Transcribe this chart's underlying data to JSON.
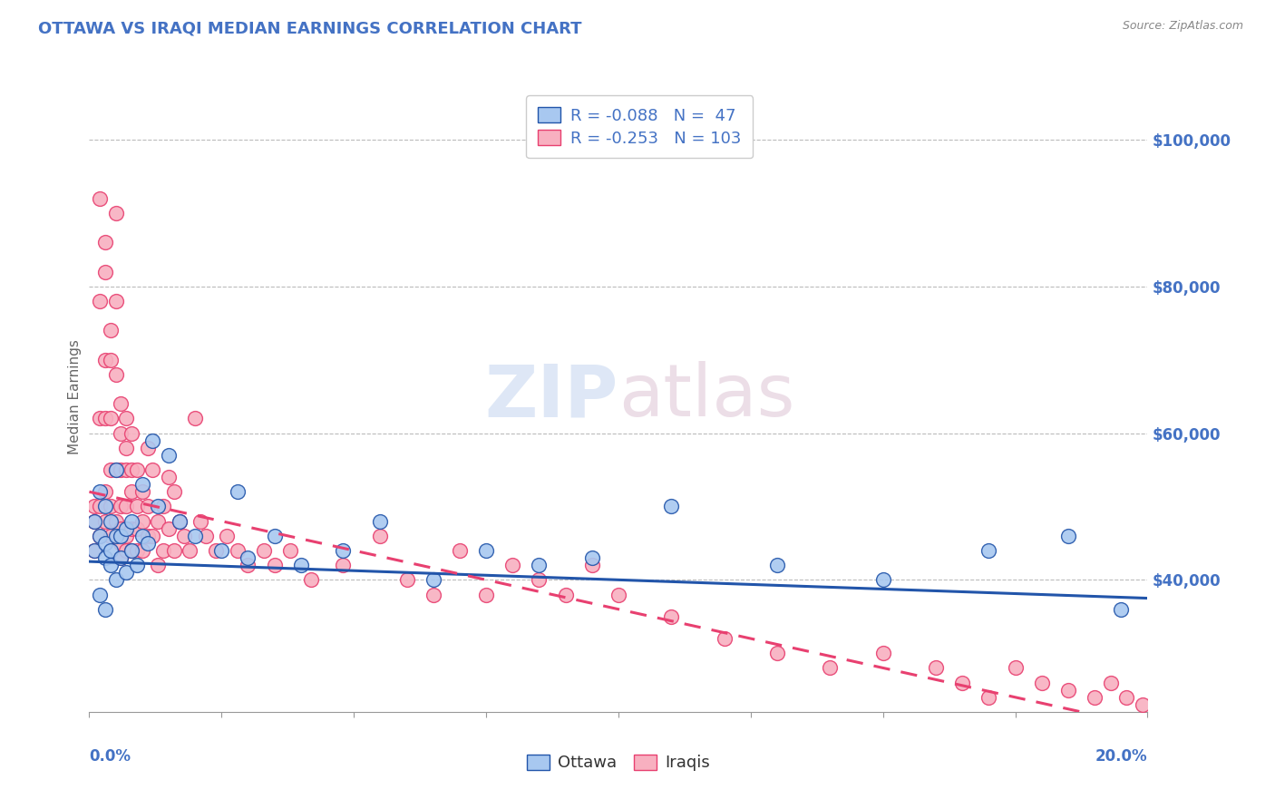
{
  "title": "OTTAWA VS IRAQI MEDIAN EARNINGS CORRELATION CHART",
  "source": "Source: ZipAtlas.com",
  "ylabel": "Median Earnings",
  "ytick_labels": [
    "$40,000",
    "$60,000",
    "$80,000",
    "$100,000"
  ],
  "ytick_values": [
    40000,
    60000,
    80000,
    100000
  ],
  "xmin": 0.0,
  "xmax": 0.2,
  "ymin": 22000,
  "ymax": 108000,
  "ottawa_color": "#a8c8f0",
  "iraqis_color": "#f8b0c0",
  "regression_ottawa_color": "#2255aa",
  "regression_iraqis_color": "#e84070",
  "R_ottawa": -0.088,
  "N_ottawa": 47,
  "R_iraqis": -0.253,
  "N_iraqis": 103,
  "title_color": "#4472c4",
  "axis_label_color": "#4472c4",
  "ytick_color": "#4472c4",
  "legend_R_color": "#4472c4",
  "ottawa_scatter_x": [
    0.001,
    0.001,
    0.002,
    0.002,
    0.002,
    0.003,
    0.003,
    0.003,
    0.003,
    0.004,
    0.004,
    0.004,
    0.005,
    0.005,
    0.005,
    0.006,
    0.006,
    0.007,
    0.007,
    0.008,
    0.008,
    0.009,
    0.01,
    0.01,
    0.011,
    0.012,
    0.013,
    0.015,
    0.017,
    0.02,
    0.025,
    0.028,
    0.03,
    0.035,
    0.04,
    0.048,
    0.055,
    0.065,
    0.075,
    0.085,
    0.095,
    0.11,
    0.13,
    0.15,
    0.17,
    0.185,
    0.195
  ],
  "ottawa_scatter_y": [
    48000,
    44000,
    46000,
    38000,
    52000,
    43000,
    50000,
    45000,
    36000,
    44000,
    42000,
    48000,
    46000,
    40000,
    55000,
    43000,
    46000,
    41000,
    47000,
    44000,
    48000,
    42000,
    46000,
    53000,
    45000,
    59000,
    50000,
    57000,
    48000,
    46000,
    44000,
    52000,
    43000,
    46000,
    42000,
    44000,
    48000,
    40000,
    44000,
    42000,
    43000,
    50000,
    42000,
    40000,
    44000,
    46000,
    36000
  ],
  "iraqis_scatter_x": [
    0.001,
    0.001,
    0.001,
    0.002,
    0.002,
    0.002,
    0.002,
    0.002,
    0.003,
    0.003,
    0.003,
    0.003,
    0.003,
    0.003,
    0.004,
    0.004,
    0.004,
    0.004,
    0.004,
    0.004,
    0.005,
    0.005,
    0.005,
    0.005,
    0.005,
    0.006,
    0.006,
    0.006,
    0.006,
    0.006,
    0.006,
    0.006,
    0.007,
    0.007,
    0.007,
    0.007,
    0.007,
    0.007,
    0.008,
    0.008,
    0.008,
    0.008,
    0.008,
    0.009,
    0.009,
    0.009,
    0.009,
    0.01,
    0.01,
    0.01,
    0.011,
    0.011,
    0.011,
    0.012,
    0.012,
    0.013,
    0.013,
    0.014,
    0.014,
    0.015,
    0.015,
    0.016,
    0.016,
    0.017,
    0.018,
    0.019,
    0.02,
    0.021,
    0.022,
    0.024,
    0.026,
    0.028,
    0.03,
    0.033,
    0.035,
    0.038,
    0.042,
    0.048,
    0.055,
    0.06,
    0.065,
    0.07,
    0.075,
    0.08,
    0.085,
    0.09,
    0.095,
    0.1,
    0.11,
    0.12,
    0.13,
    0.14,
    0.15,
    0.16,
    0.165,
    0.17,
    0.175,
    0.18,
    0.185,
    0.19,
    0.193,
    0.196,
    0.199
  ],
  "iraqis_scatter_y": [
    50000,
    44000,
    48000,
    92000,
    78000,
    62000,
    50000,
    46000,
    86000,
    82000,
    70000,
    62000,
    52000,
    48000,
    74000,
    70000,
    62000,
    55000,
    50000,
    46000,
    90000,
    78000,
    68000,
    55000,
    48000,
    64000,
    60000,
    55000,
    50000,
    47000,
    45000,
    43000,
    62000,
    58000,
    55000,
    50000,
    46000,
    44000,
    60000,
    55000,
    52000,
    47000,
    44000,
    55000,
    50000,
    47000,
    44000,
    52000,
    48000,
    44000,
    58000,
    50000,
    46000,
    55000,
    46000,
    48000,
    42000,
    50000,
    44000,
    54000,
    47000,
    52000,
    44000,
    48000,
    46000,
    44000,
    62000,
    48000,
    46000,
    44000,
    46000,
    44000,
    42000,
    44000,
    42000,
    44000,
    40000,
    42000,
    46000,
    40000,
    38000,
    44000,
    38000,
    42000,
    40000,
    38000,
    42000,
    38000,
    35000,
    32000,
    30000,
    28000,
    30000,
    28000,
    26000,
    24000,
    28000,
    26000,
    25000,
    24000,
    26000,
    24000,
    23000
  ]
}
